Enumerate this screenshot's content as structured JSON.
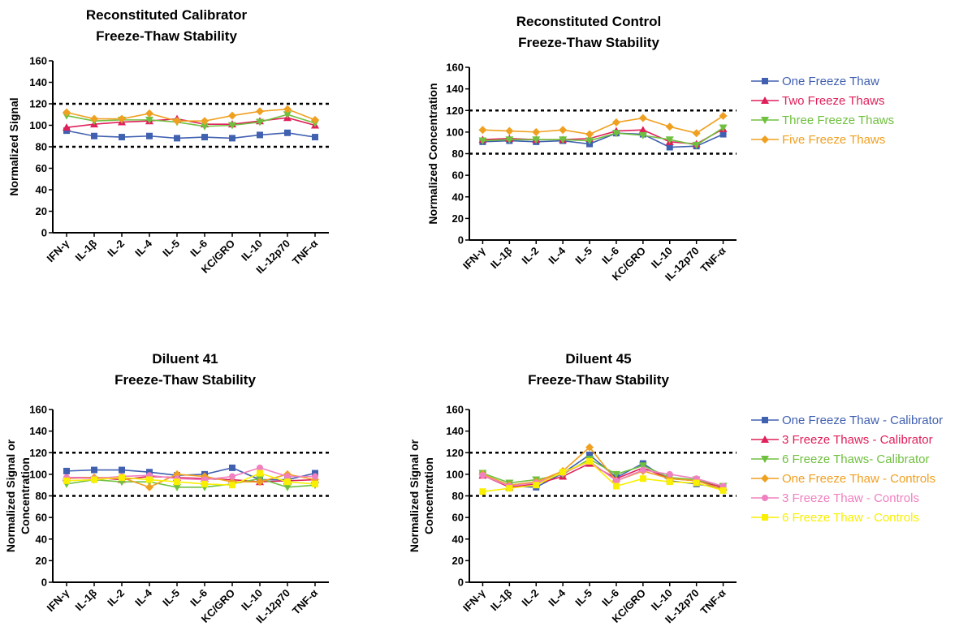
{
  "chart_data": [
    {
      "type": "line",
      "title": [
        "Reconstituted Calibrator",
        "Freeze-Thaw Stability"
      ],
      "ylabel": [
        "Normalized Signal"
      ],
      "ylim": [
        0,
        160
      ],
      "yticks": [
        0,
        20,
        40,
        60,
        80,
        100,
        120,
        140,
        160
      ],
      "reference_lines": [
        80,
        120
      ],
      "categories": [
        "IFN-γ",
        "IL-1β",
        "IL-2",
        "IL-4",
        "IL-5",
        "IL-6",
        "KC/GRO",
        "IL-10",
        "IL-12p70",
        "TNF-α"
      ],
      "legend": "none",
      "series": [
        {
          "color": "#4060b0",
          "marker": "square",
          "values": [
            95,
            90,
            89,
            90,
            88,
            89,
            88,
            91,
            93,
            89
          ]
        },
        {
          "color": "#e0205a",
          "marker": "triangle-up",
          "values": [
            98,
            101,
            103,
            104,
            106,
            101,
            101,
            104,
            107,
            100
          ]
        },
        {
          "color": "#70c040",
          "marker": "triangle-down",
          "values": [
            109,
            104,
            105,
            105,
            103,
            99,
            100,
            103,
            110,
            102
          ]
        },
        {
          "color": "#f0a020",
          "marker": "diamond",
          "values": [
            112,
            106,
            106,
            111,
            104,
            104,
            109,
            113,
            115,
            105
          ]
        }
      ]
    },
    {
      "type": "line",
      "title": [
        "Reconstituted Control",
        "Freeze-Thaw Stability"
      ],
      "ylabel": [
        "Normalized Concentration"
      ],
      "ylim": [
        0,
        160
      ],
      "yticks": [
        0,
        20,
        40,
        60,
        80,
        100,
        120,
        140,
        160
      ],
      "reference_lines": [
        80,
        120
      ],
      "categories": [
        "IFN-γ",
        "IL-1β",
        "IL-2",
        "IL-4",
        "IL-5",
        "IL-6",
        "KC/GRO",
        "IL-10",
        "IL-12p70",
        "TNF-α"
      ],
      "legend": "right",
      "series": [
        {
          "name": "One Freeze Thaw",
          "color": "#4060b0",
          "marker": "square",
          "values": [
            91,
            92,
            91,
            92,
            89,
            99,
            98,
            86,
            87,
            98
          ]
        },
        {
          "name": "Two Freeze Thaws",
          "color": "#e0205a",
          "marker": "triangle-up",
          "values": [
            93,
            94,
            93,
            93,
            94,
            101,
            102,
            91,
            89,
            103
          ]
        },
        {
          "name": "Three Freeze Thaws",
          "color": "#70c040",
          "marker": "triangle-down",
          "values": [
            92,
            93,
            93,
            93,
            92,
            99,
            97,
            93,
            88,
            104
          ]
        },
        {
          "name": "Five Freeze Thaws",
          "color": "#f0a020",
          "marker": "diamond",
          "values": [
            102,
            101,
            100,
            102,
            98,
            109,
            113,
            105,
            99,
            115
          ]
        }
      ]
    },
    {
      "type": "line",
      "title": [
        "Diluent 41",
        "Freeze-Thaw Stability"
      ],
      "ylabel": [
        "Normalized Signal or",
        "Concentration"
      ],
      "ylim": [
        0,
        160
      ],
      "yticks": [
        0,
        20,
        40,
        60,
        80,
        100,
        120,
        140,
        160
      ],
      "reference_lines": [
        80,
        120
      ],
      "categories": [
        "IFN-γ",
        "IL-1β",
        "IL-2",
        "IL-4",
        "IL-5",
        "IL-6",
        "KC/GRO",
        "IL-10",
        "IL-12p70",
        "TNF-α"
      ],
      "legend": "none",
      "series": [
        {
          "color": "#4060b0",
          "marker": "square",
          "values": [
            103,
            104,
            104,
            102,
            99,
            100,
            106,
            95,
            95,
            101
          ]
        },
        {
          "color": "#e0205a",
          "marker": "triangle-up",
          "values": [
            97,
            97,
            95,
            98,
            97,
            96,
            95,
            93,
            94,
            95
          ]
        },
        {
          "color": "#70c040",
          "marker": "triangle-down",
          "values": [
            91,
            95,
            93,
            93,
            88,
            88,
            91,
            96,
            88,
            90
          ]
        },
        {
          "color": "#f0a020",
          "marker": "diamond",
          "values": [
            96,
            97,
            97,
            88,
            100,
            98,
            93,
            93,
            100,
            95
          ]
        },
        {
          "color": "#f080c0",
          "marker": "circle",
          "values": [
            97,
            96,
            98,
            99,
            96,
            95,
            98,
            106,
            98,
            98
          ]
        },
        {
          "color": "#f8f000",
          "marker": "square",
          "values": [
            94,
            95,
            97,
            95,
            93,
            91,
            90,
            101,
            93,
            91
          ]
        }
      ]
    },
    {
      "type": "line",
      "title": [
        "Diluent 45",
        "Freeze-Thaw Stability"
      ],
      "ylabel": [
        "Normalized Signal or",
        "Concentration"
      ],
      "ylim": [
        0,
        160
      ],
      "yticks": [
        0,
        20,
        40,
        60,
        80,
        100,
        120,
        140,
        160
      ],
      "reference_lines": [
        80,
        120
      ],
      "categories": [
        "IFN-γ",
        "IL-1β",
        "IL-2",
        "IL-4",
        "IL-5",
        "IL-6",
        "KC/GRO",
        "IL-10",
        "IL-12p70",
        "TNF-α"
      ],
      "legend": "right",
      "series": [
        {
          "name": "One Freeze Thaw - Calibrator",
          "color": "#4060b0",
          "marker": "square",
          "values": [
            100,
            89,
            88,
            101,
            118,
            97,
            110,
            94,
            91,
            87
          ]
        },
        {
          "name": "3 Freeze Thaws - Calibrator",
          "color": "#e0205a",
          "marker": "triangle-up",
          "values": [
            99,
            88,
            91,
            98,
            110,
            96,
            106,
            96,
            94,
            88
          ]
        },
        {
          "name": "6 Freeze Thaws- Calibrator",
          "color": "#70c040",
          "marker": "triangle-down",
          "values": [
            101,
            92,
            95,
            100,
            114,
            100,
            108,
            97,
            95,
            89
          ]
        },
        {
          "name": "One Freeze Thaw - Controls",
          "color": "#f0a020",
          "marker": "diamond",
          "values": [
            100,
            90,
            93,
            103,
            125,
            94,
            103,
            96,
            94,
            86
          ]
        },
        {
          "name": "3 Freeze Thaw - Controls",
          "color": "#f080c0",
          "marker": "circle",
          "values": [
            99,
            89,
            92,
            101,
            112,
            94,
            104,
            100,
            96,
            89
          ]
        },
        {
          "name": "6 Freeze Thaw - Controls",
          "color": "#f8f000",
          "marker": "square",
          "values": [
            84,
            87,
            90,
            102,
            112,
            89,
            96,
            93,
            92,
            85
          ]
        }
      ]
    }
  ]
}
